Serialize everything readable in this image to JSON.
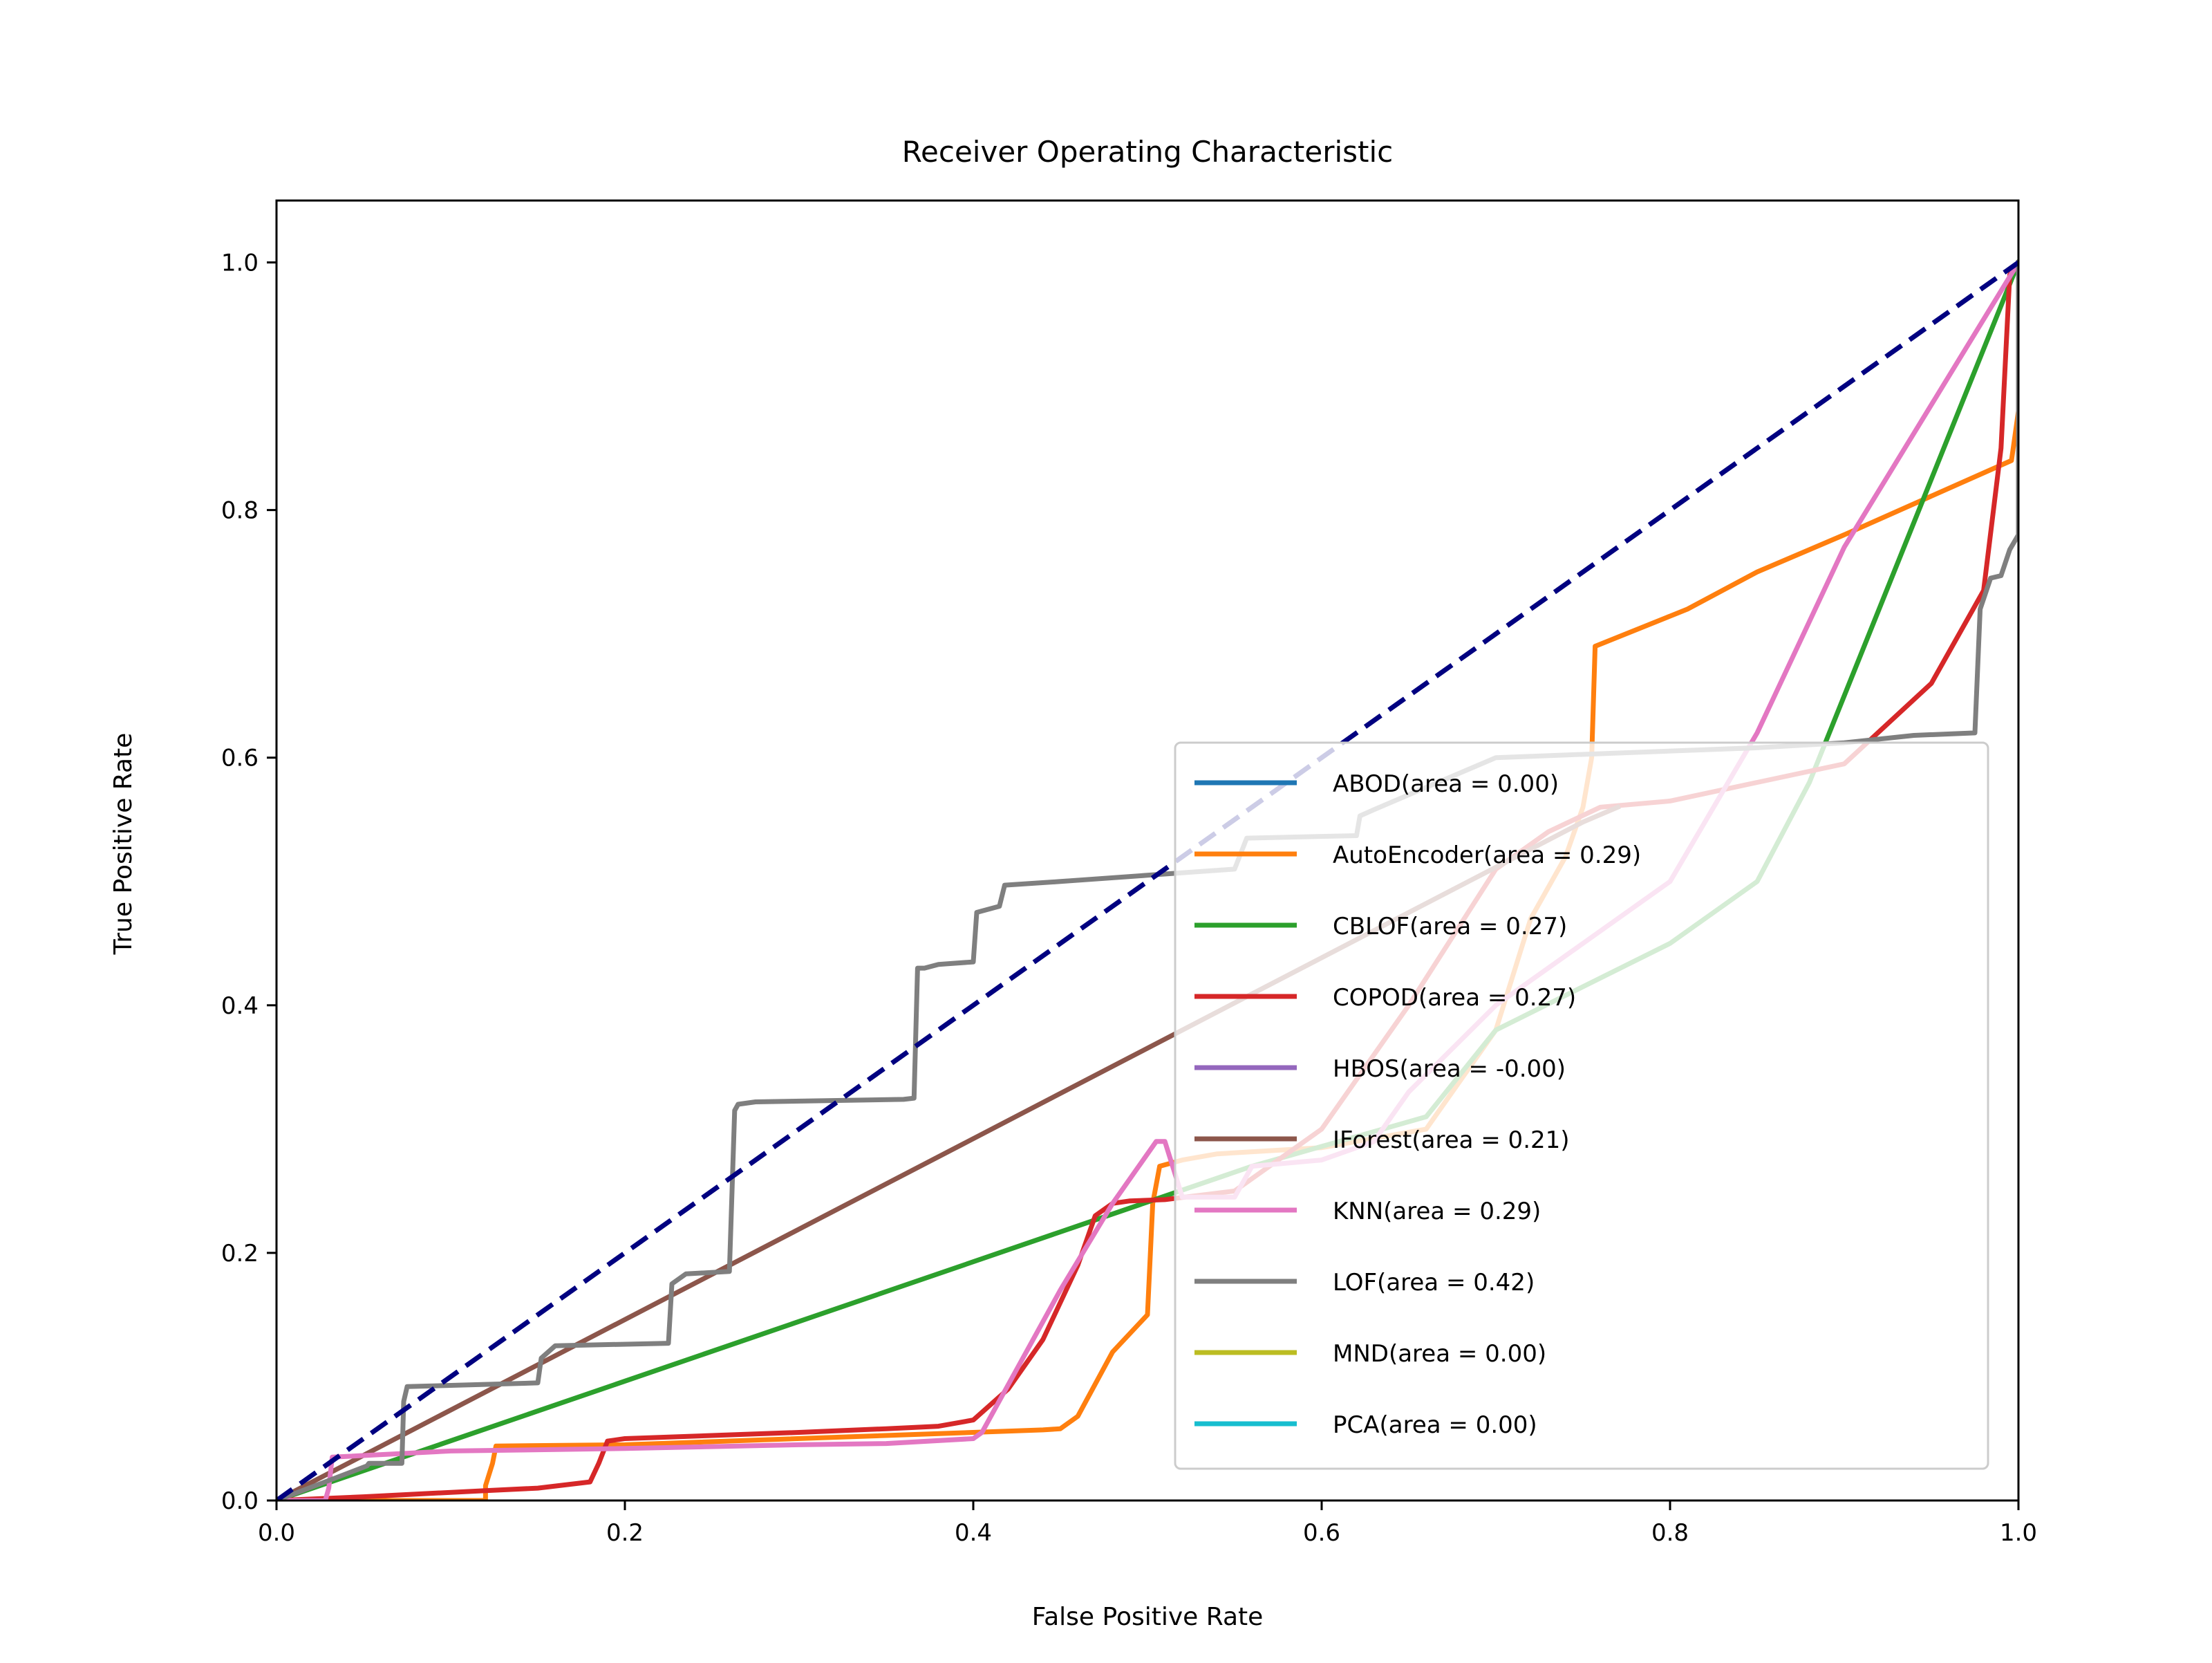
{
  "chart_data": {
    "type": "line",
    "title": "Receiver Operating Characteristic",
    "xlabel": "False Positive Rate",
    "ylabel": "True Positive Rate",
    "xlim": [
      0.0,
      1.0
    ],
    "ylim": [
      0.0,
      1.05
    ],
    "xticks": [
      0.0,
      0.2,
      0.4,
      0.6,
      0.8,
      1.0
    ],
    "yticks": [
      0.0,
      0.2,
      0.4,
      0.6,
      0.8,
      1.0
    ],
    "xtick_labels": [
      "0.0",
      "0.2",
      "0.4",
      "0.6",
      "0.8",
      "1.0"
    ],
    "ytick_labels": [
      "0.0",
      "0.2",
      "0.4",
      "0.6",
      "0.8",
      "1.0"
    ],
    "grid": false,
    "legend_position": "lower-right",
    "series": [
      {
        "name": "ABOD(area = 0.00)",
        "color": "#1f77b4",
        "x": [],
        "y": []
      },
      {
        "name": "AutoEncoder(area = 0.29)",
        "color": "#ff7f0e",
        "x": [
          0.0,
          0.12,
          0.12,
          0.124,
          0.126,
          0.2,
          0.44,
          0.45,
          0.46,
          0.48,
          0.5,
          0.503,
          0.507,
          0.52,
          0.54,
          0.6,
          0.66,
          0.7,
          0.72,
          0.74,
          0.75,
          0.755,
          0.757,
          0.81,
          0.85,
          0.9,
          0.996,
          1.0,
          1.0
        ],
        "y": [
          0.0,
          0.0,
          0.012,
          0.03,
          0.044,
          0.045,
          0.057,
          0.058,
          0.068,
          0.12,
          0.15,
          0.24,
          0.27,
          0.275,
          0.28,
          0.285,
          0.3,
          0.38,
          0.47,
          0.52,
          0.56,
          0.6,
          0.69,
          0.72,
          0.75,
          0.78,
          0.84,
          0.88,
          1.0
        ]
      },
      {
        "name": "CBLOF(area = 0.27)",
        "color": "#2ca02c",
        "x": [
          0.0,
          0.56,
          0.66,
          0.7,
          0.8,
          0.85,
          0.88,
          0.9,
          1.0
        ],
        "y": [
          0.0,
          0.27,
          0.31,
          0.38,
          0.45,
          0.5,
          0.58,
          0.65,
          1.0
        ]
      },
      {
        "name": "COPOD(area = 0.27)",
        "color": "#d62728",
        "x": [
          0.0,
          0.05,
          0.12,
          0.15,
          0.18,
          0.185,
          0.19,
          0.2,
          0.3,
          0.35,
          0.38,
          0.4,
          0.42,
          0.44,
          0.46,
          0.47,
          0.48,
          0.49,
          0.51,
          0.55,
          0.6,
          0.65,
          0.7,
          0.73,
          0.76,
          0.8,
          0.85,
          0.9,
          0.95,
          0.98,
          0.99,
          0.995,
          1.0
        ],
        "y": [
          0.0,
          0.003,
          0.008,
          0.01,
          0.015,
          0.03,
          0.048,
          0.05,
          0.055,
          0.058,
          0.06,
          0.065,
          0.09,
          0.13,
          0.19,
          0.23,
          0.24,
          0.242,
          0.243,
          0.25,
          0.3,
          0.4,
          0.51,
          0.54,
          0.56,
          0.565,
          0.58,
          0.595,
          0.66,
          0.735,
          0.85,
          0.99,
          1.0
        ]
      },
      {
        "name": "HBOS(area = -0.00)",
        "color": "#9467bd",
        "x": [],
        "y": []
      },
      {
        "name": "IForest(area = 0.21)",
        "color": "#8c564b",
        "x": [
          0.0,
          0.75,
          0.77
        ],
        "y": [
          0.0,
          0.548,
          0.56
        ]
      },
      {
        "name": "KNN(area = 0.29)",
        "color": "#e377c2",
        "x": [
          0.0,
          0.028,
          0.03,
          0.032,
          0.1,
          0.2,
          0.3,
          0.35,
          0.4,
          0.405,
          0.45,
          0.48,
          0.505,
          0.51,
          0.52,
          0.55,
          0.56,
          0.6,
          0.63,
          0.65,
          0.7,
          0.75,
          0.8,
          0.85,
          0.9,
          1.0
        ],
        "y": [
          0.0,
          0.0,
          0.01,
          0.035,
          0.04,
          0.042,
          0.045,
          0.046,
          0.05,
          0.055,
          0.17,
          0.24,
          0.29,
          0.29,
          0.245,
          0.245,
          0.27,
          0.275,
          0.29,
          0.33,
          0.4,
          0.45,
          0.5,
          0.62,
          0.77,
          1.0
        ]
      },
      {
        "name": "LOF(area = 0.42)",
        "color": "#7f7f7f",
        "x": [
          0.0,
          0.052,
          0.053,
          0.072,
          0.073,
          0.075,
          0.15,
          0.152,
          0.16,
          0.225,
          0.227,
          0.235,
          0.26,
          0.263,
          0.265,
          0.275,
          0.36,
          0.366,
          0.368,
          0.372,
          0.38,
          0.4,
          0.402,
          0.415,
          0.418,
          0.45,
          0.5,
          0.55,
          0.557,
          0.62,
          0.622,
          0.63,
          0.7,
          0.85,
          0.9,
          0.94,
          0.975,
          0.978,
          0.984,
          0.99,
          0.995,
          1.0,
          1.0
        ],
        "y": [
          0.0,
          0.028,
          0.03,
          0.03,
          0.08,
          0.092,
          0.095,
          0.115,
          0.125,
          0.127,
          0.175,
          0.183,
          0.185,
          0.315,
          0.32,
          0.322,
          0.324,
          0.325,
          0.43,
          0.43,
          0.433,
          0.435,
          0.475,
          0.48,
          0.497,
          0.5,
          0.505,
          0.51,
          0.535,
          0.537,
          0.553,
          0.558,
          0.6,
          0.608,
          0.612,
          0.618,
          0.62,
          0.72,
          0.745,
          0.747,
          0.768,
          0.78,
          1.0
        ]
      },
      {
        "name": "MND(area = 0.00)",
        "color": "#bcbd22",
        "x": [],
        "y": []
      },
      {
        "name": "PCA(area = 0.00)",
        "color": "#17becf",
        "x": [],
        "y": []
      }
    ],
    "reference_line": {
      "x": [
        0.0,
        1.0
      ],
      "y": [
        0.0,
        1.0
      ],
      "color": "#000080",
      "style": "dashed"
    }
  }
}
